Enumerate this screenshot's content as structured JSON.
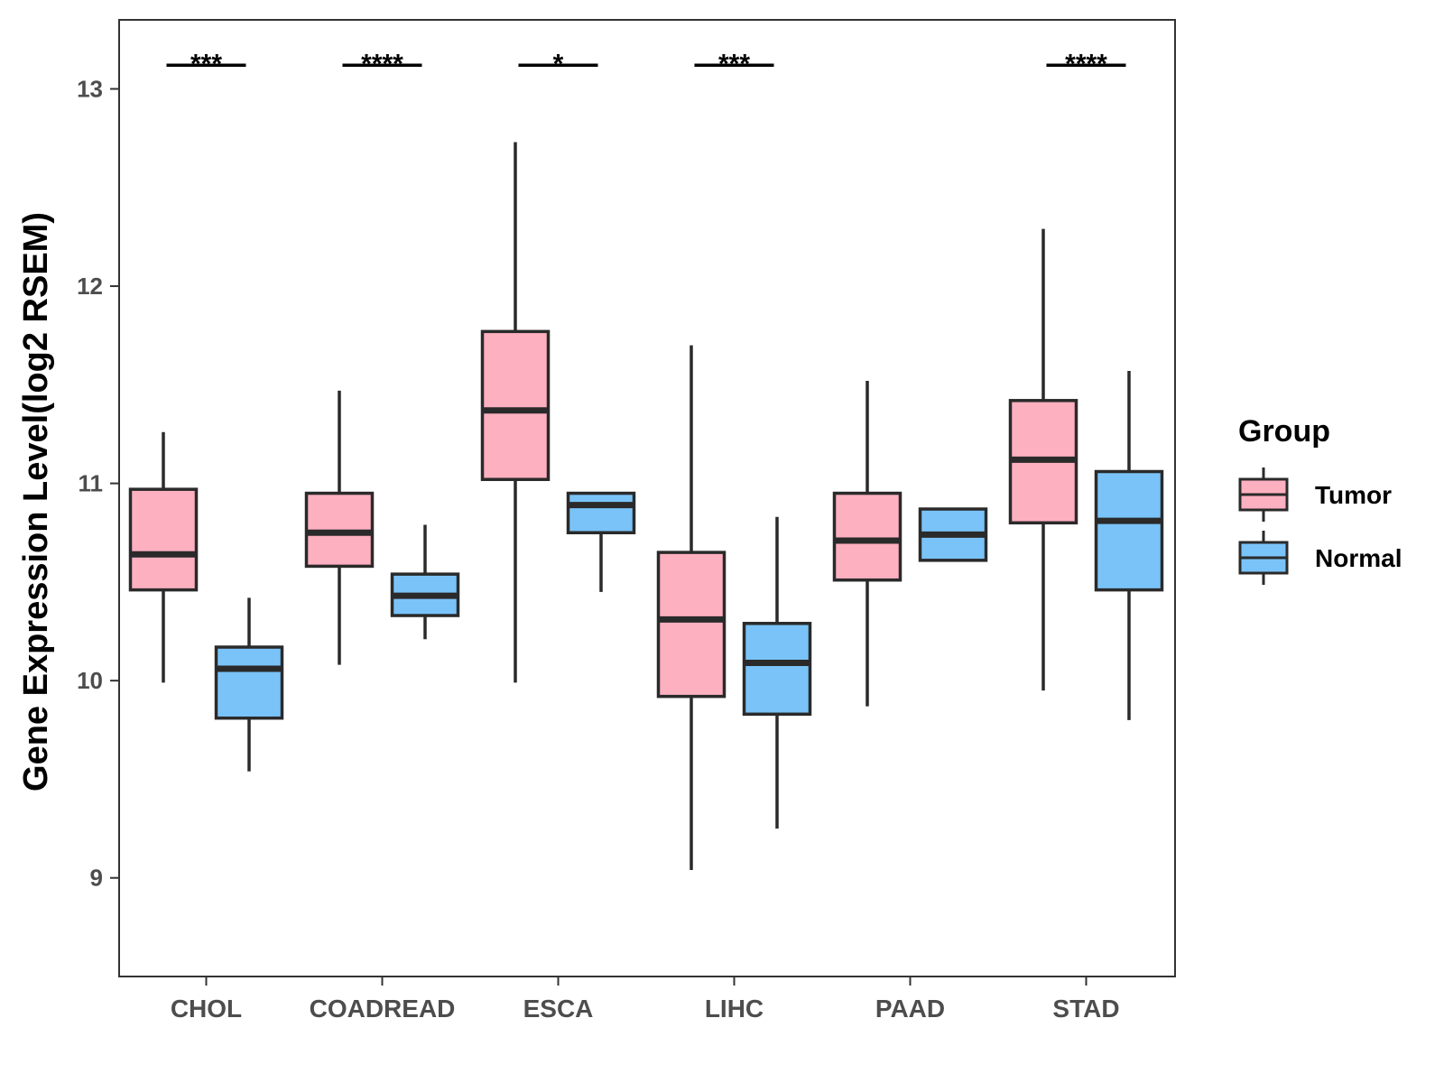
{
  "chart_data": {
    "type": "boxplot",
    "title": "",
    "xlabel": "",
    "ylabel": "Gene Expression Level(log2 RSEM)",
    "ylim": [
      8.5,
      13.35
    ],
    "yticks": [
      9,
      10,
      11,
      12,
      13
    ],
    "categories": [
      "CHOL",
      "COADREAD",
      "ESCA",
      "LIHC",
      "PAAD",
      "STAD"
    ],
    "legend": {
      "title": "Group",
      "position": "right",
      "entries": [
        "Tumor",
        "Normal"
      ]
    },
    "colors": {
      "Tumor": "#FDB0C0",
      "Normal": "#7AC3F8",
      "outline": "#2a2a2a"
    },
    "series": [
      {
        "name": "Tumor",
        "boxes": [
          {
            "min": 9.99,
            "q1": 10.46,
            "median": 10.64,
            "q3": 10.97,
            "max": 11.26
          },
          {
            "min": 10.08,
            "q1": 10.58,
            "median": 10.75,
            "q3": 10.95,
            "max": 11.47
          },
          {
            "min": 9.99,
            "q1": 11.02,
            "median": 11.37,
            "q3": 11.77,
            "max": 12.73
          },
          {
            "min": 9.04,
            "q1": 9.92,
            "median": 10.31,
            "q3": 10.65,
            "max": 11.7
          },
          {
            "min": 9.87,
            "q1": 10.51,
            "median": 10.71,
            "q3": 10.95,
            "max": 11.52
          },
          {
            "min": 9.95,
            "q1": 10.8,
            "median": 11.12,
            "q3": 11.42,
            "max": 12.29
          }
        ]
      },
      {
        "name": "Normal",
        "boxes": [
          {
            "min": 9.54,
            "q1": 9.81,
            "median": 10.06,
            "q3": 10.17,
            "max": 10.42
          },
          {
            "min": 10.21,
            "q1": 10.33,
            "median": 10.43,
            "q3": 10.54,
            "max": 10.79
          },
          {
            "min": 10.45,
            "q1": 10.75,
            "median": 10.89,
            "q3": 10.95,
            "max": 10.95
          },
          {
            "min": 9.25,
            "q1": 9.83,
            "median": 10.09,
            "q3": 10.29,
            "max": 10.83
          },
          {
            "min": 10.61,
            "q1": 10.61,
            "median": 10.74,
            "q3": 10.87,
            "max": 10.87
          },
          {
            "min": 9.8,
            "q1": 10.46,
            "median": 10.81,
            "q3": 11.06,
            "max": 11.57
          }
        ]
      }
    ],
    "significance": [
      {
        "category": "CHOL",
        "label": "***"
      },
      {
        "category": "COADREAD",
        "label": "****"
      },
      {
        "category": "ESCA",
        "label": "*"
      },
      {
        "category": "LIHC",
        "label": "***"
      },
      {
        "category": "PAAD",
        "label": ""
      },
      {
        "category": "STAD",
        "label": "****"
      }
    ],
    "significance_y": 13.12
  }
}
